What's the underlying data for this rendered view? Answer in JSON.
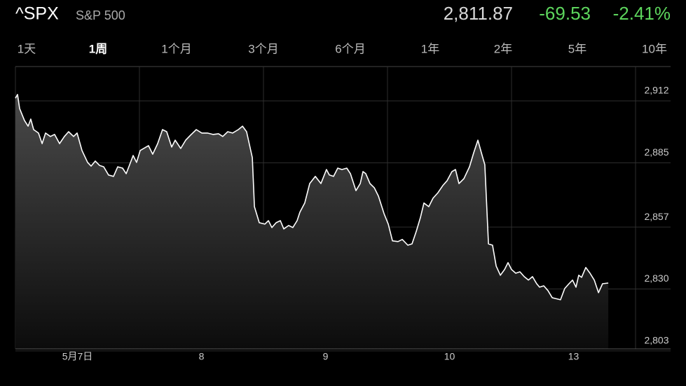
{
  "header": {
    "symbol": "^SPX",
    "name": "S&P 500",
    "price": "2,811.87",
    "change": "-69.53",
    "change_percent": "-2.41%"
  },
  "tabs": [
    "1天",
    "1周",
    "1个月",
    "3个月",
    "6个月",
    "1年",
    "2年",
    "5年",
    "10年"
  ],
  "selected_tab": 1,
  "chart_data": {
    "type": "line",
    "x": [
      0,
      0.017,
      0.034,
      0.073,
      0.102,
      0.124,
      0.147,
      0.186,
      0.215,
      0.243,
      0.282,
      0.316,
      0.356,
      0.395,
      0.429,
      0.469,
      0.497,
      0.537,
      0.582,
      0.61,
      0.644,
      0.678,
      0.712,
      0.751,
      0.791,
      0.825,
      0.864,
      0.893,
      0.921,
      0.949,
      0.977,
      1.006,
      1.073,
      1.107,
      1.147,
      1.186,
      1.22,
      1.26,
      1.288,
      1.333,
      1.373,
      1.412,
      1.458,
      1.503,
      1.548,
      1.593,
      1.638,
      1.672,
      1.712,
      1.751,
      1.797,
      1.831,
      1.864,
      1.91,
      1.927,
      1.966,
      2.011,
      2.04,
      2.068,
      2.102,
      2.136,
      2.164,
      2.203,
      2.237,
      2.271,
      2.294,
      2.333,
      2.373,
      2.418,
      2.463,
      2.508,
      2.531,
      2.565,
      2.599,
      2.633,
      2.672,
      2.701,
      2.746,
      2.78,
      2.802,
      2.825,
      2.859,
      2.893,
      2.927,
      2.972,
      3.006,
      3.04,
      3.085,
      3.119,
      3.164,
      3.198,
      3.232,
      3.266,
      3.294,
      3.333,
      3.367,
      3.407,
      3.446,
      3.48,
      3.52,
      3.548,
      3.576,
      3.616,
      3.661,
      3.695,
      3.729,
      3.763,
      3.785,
      3.814,
      3.847,
      3.876,
      3.91,
      3.944,
      3.972,
      4.0,
      4.034,
      4.068,
      4.102,
      4.136,
      4.169,
      4.203,
      4.226,
      4.26,
      4.294,
      4.328,
      4.395,
      4.429,
      4.463,
      4.492,
      4.52,
      4.542,
      4.565,
      4.599,
      4.633,
      4.667,
      4.701,
      4.734,
      4.78
    ],
    "values": [
      2908.9,
      2910.5,
      2904.4,
      2899.2,
      2896.7,
      2899.8,
      2895.2,
      2893.7,
      2889.1,
      2893.7,
      2892.2,
      2893.1,
      2889.1,
      2892.2,
      2894.3,
      2892.2,
      2893.7,
      2886.1,
      2880.9,
      2879.3,
      2881.5,
      2879.6,
      2879.0,
      2875.4,
      2874.8,
      2879.0,
      2878.4,
      2876.0,
      2879.9,
      2883.9,
      2880.9,
      2886.1,
      2888.2,
      2884.5,
      2889.1,
      2895.2,
      2894.3,
      2887.6,
      2890.6,
      2887.0,
      2890.6,
      2892.8,
      2895.2,
      2893.7,
      2893.7,
      2893.1,
      2893.4,
      2892.2,
      2894.3,
      2893.7,
      2895.2,
      2896.7,
      2894.3,
      2883.0,
      2861.6,
      2854.6,
      2854.0,
      2855.5,
      2852.5,
      2854.6,
      2855.5,
      2851.9,
      2853.4,
      2852.5,
      2855.5,
      2859.2,
      2863.2,
      2871.7,
      2874.8,
      2871.7,
      2877.8,
      2875.4,
      2874.8,
      2878.4,
      2877.8,
      2878.4,
      2876.0,
      2868.6,
      2871.7,
      2876.9,
      2876.0,
      2871.7,
      2869.9,
      2866.2,
      2858.6,
      2854.0,
      2846.7,
      2846.4,
      2847.3,
      2844.8,
      2845.4,
      2850.9,
      2857.0,
      2863.2,
      2861.6,
      2865.3,
      2867.7,
      2870.8,
      2872.9,
      2876.9,
      2877.8,
      2871.7,
      2873.8,
      2879.0,
      2885.1,
      2890.6,
      2883.9,
      2879.9,
      2845.4,
      2844.8,
      2835.7,
      2831.7,
      2834.2,
      2837.2,
      2834.2,
      2832.6,
      2833.2,
      2831.1,
      2829.6,
      2831.1,
      2828.0,
      2826.5,
      2827.1,
      2825.0,
      2821.9,
      2821.0,
      2825.9,
      2828.0,
      2829.6,
      2826.5,
      2831.7,
      2830.8,
      2835.1,
      2832.6,
      2829.6,
      2824.1,
      2828.0,
      2828.3
    ],
    "color": "#ffffff",
    "xlim": [
      0,
      5
    ],
    "xticks": [
      {
        "value": 0.5,
        "label": "5月7日"
      },
      {
        "value": 1.5,
        "label": "8"
      },
      {
        "value": 2.5,
        "label": "9"
      },
      {
        "value": 3.5,
        "label": "10"
      },
      {
        "value": 4.5,
        "label": "13"
      }
    ],
    "ylim": [
      2799.6,
      2922.7
    ],
    "yticks": [
      {
        "value": 2912,
        "label": "2,912"
      },
      {
        "value": 2885,
        "label": "2,885"
      },
      {
        "value": 2857,
        "label": "2,857"
      },
      {
        "value": 2830,
        "label": "2,830"
      },
      {
        "value": 2803,
        "label": "2,803"
      }
    ],
    "grid": true
  }
}
